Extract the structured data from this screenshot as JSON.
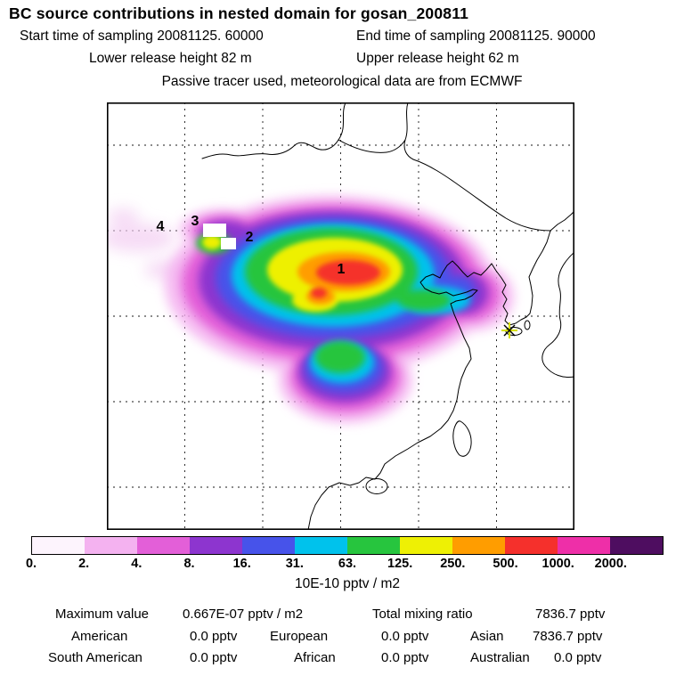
{
  "header": {
    "title": "BC  source contributions in nested domain for gosan_200811",
    "start_time": "Start time of sampling 20081125. 60000",
    "end_time": "End time of sampling 20081125. 90000",
    "lower_release": "Lower release height   82 m",
    "upper_release": "Upper release height   62 m",
    "tracer_note": "Passive tracer used, meteorological data are from ECMWF"
  },
  "map": {
    "site_labels": [
      "1",
      "2",
      "3",
      "4"
    ]
  },
  "colorbar": {
    "ticks": [
      "0.",
      "2.",
      "4.",
      "8.",
      "16.",
      "31.",
      "63.",
      "125.",
      "250.",
      "500.",
      "1000.",
      "2000."
    ],
    "colors": [
      "#fdf4fd",
      "#f4b2f0",
      "#e35fd8",
      "#8d35cf",
      "#4753ea",
      "#00c2ec",
      "#27c53e",
      "#eef004",
      "#ff9d00",
      "#f5302c",
      "#ee2fa8",
      "#4e0d60"
    ],
    "units": "10E-10 pptv / m2"
  },
  "stats": {
    "maximum_label": "Maximum value",
    "maximum_value": "0.667E-07 pptv / m2",
    "total_label": "Total mixing ratio",
    "total_value": "7836.7 pptv",
    "regions": [
      {
        "label": "American",
        "value": "0.0 pptv"
      },
      {
        "label": "European",
        "value": "0.0 pptv"
      },
      {
        "label": "Asian",
        "value": "7836.7 pptv"
      },
      {
        "label": "South American",
        "value": "0.0 pptv"
      },
      {
        "label": "African",
        "value": "0.0 pptv"
      },
      {
        "label": "Australian",
        "value": "0.0 pptv"
      }
    ]
  },
  "chart_data": {
    "type": "heatmap",
    "title": "BC source contributions in nested domain for gosan_200811",
    "subtitle_lines": [
      "Start time of sampling 20081125. 60000",
      "End time of sampling 20081125. 90000",
      "Lower release height 82 m",
      "Upper release height 62 m",
      "Passive tracer used, meteorological data are from ECMWF"
    ],
    "colorbar_levels": [
      0,
      2,
      4,
      8,
      16,
      31,
      63,
      125,
      250,
      500,
      1000,
      2000
    ],
    "colorbar_units": "10E-10 pptv / m2",
    "maximum_value": "0.667E-07 pptv / m2",
    "total_mixing_ratio": "7836.7 pptv",
    "regional_mixing_ratio_pptv": {
      "American": 0.0,
      "European": 0.0,
      "Asian": 7836.7,
      "South American": 0.0,
      "African": 0.0,
      "Australian": 0.0
    },
    "numbered_source_markers": [
      "1",
      "2",
      "3",
      "4"
    ],
    "receptor_marker": "star at Gosan (Jeju Island)"
  }
}
